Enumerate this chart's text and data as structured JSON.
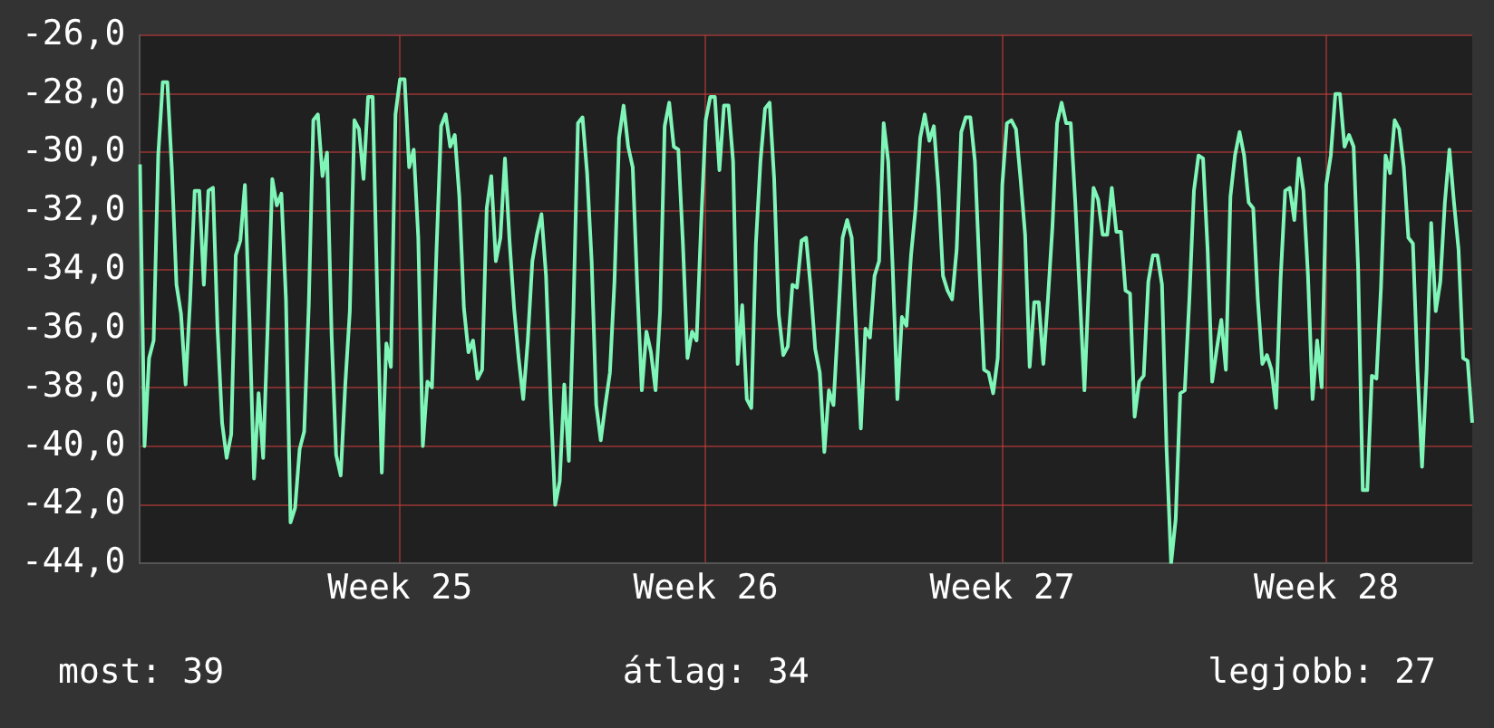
{
  "chart_data": {
    "type": "line",
    "categories": [
      null,
      null,
      null,
      null,
      null,
      null,
      null,
      null,
      null,
      null,
      null,
      null,
      null,
      null,
      null,
      null,
      null,
      null,
      null,
      null,
      null,
      null,
      null,
      null,
      null,
      null,
      null,
      null,
      null,
      null,
      null,
      null,
      null,
      null,
      null,
      null,
      null,
      null,
      null,
      null,
      null,
      null,
      null,
      null,
      null,
      null,
      null,
      null,
      null,
      null,
      null,
      null,
      null,
      null,
      null,
      null,
      null,
      "Week 25",
      null,
      null,
      null,
      null,
      null,
      null,
      null,
      null,
      null,
      null,
      null,
      null,
      null,
      null,
      null,
      null,
      null,
      null,
      null,
      null,
      null,
      null,
      null,
      null,
      null,
      null,
      null,
      null,
      null,
      null,
      null,
      null,
      null,
      null,
      null,
      null,
      null,
      null,
      null,
      null,
      null,
      null,
      null,
      null,
      null,
      null,
      null,
      null,
      null,
      null,
      null,
      null,
      null,
      null,
      null,
      null,
      null,
      null,
      null,
      null,
      null,
      null,
      null,
      null,
      null,
      null,
      "Week 26",
      null,
      null,
      null,
      null,
      null,
      null,
      null,
      null,
      null,
      null,
      null,
      null,
      null,
      null,
      null,
      null,
      null,
      null,
      null,
      null,
      null,
      null,
      null,
      null,
      null,
      null,
      null,
      null,
      null,
      null,
      null,
      null,
      null,
      null,
      null,
      null,
      null,
      null,
      null,
      null,
      null,
      null,
      null,
      null,
      null,
      null,
      null,
      null,
      null,
      null,
      null,
      null,
      null,
      null,
      null,
      null,
      null,
      null,
      null,
      null,
      null,
      null,
      null,
      null,
      "Week 27",
      null,
      null,
      null,
      null,
      null,
      null,
      null,
      null,
      null,
      null,
      null,
      null,
      null,
      null,
      null,
      null,
      null,
      null,
      null,
      null,
      null,
      null,
      null,
      null,
      null,
      null,
      null,
      null,
      null,
      null,
      null,
      null,
      null,
      null,
      null,
      null,
      null,
      null,
      null,
      null,
      null,
      null,
      null,
      null,
      null,
      null,
      null,
      null,
      null,
      null,
      null,
      null,
      null,
      null,
      null,
      null,
      null,
      null,
      null,
      null,
      null,
      null,
      null,
      null,
      null,
      null,
      null,
      null,
      null,
      null,
      "Week 28",
      null,
      null,
      null,
      null,
      null,
      null,
      null,
      null,
      null,
      null,
      null,
      null,
      null,
      null,
      null,
      null,
      null,
      null,
      null,
      null,
      null,
      null,
      null,
      null,
      null,
      null,
      null,
      null,
      null,
      null,
      null,
      null
    ],
    "series": [
      {
        "color": "#7ff5b8",
        "values": [
          -30.4,
          -40.0,
          -37.0,
          -36.4,
          -30.1,
          -27.6,
          -27.6,
          -30.6,
          -34.5,
          -35.5,
          -37.9,
          -35.0,
          -31.3,
          -31.3,
          -34.5,
          -31.3,
          -31.2,
          -36.0,
          -39.2,
          -40.4,
          -39.6,
          -33.5,
          -33.0,
          -31.1,
          -35.7,
          -41.1,
          -38.2,
          -40.4,
          -35.9,
          -30.9,
          -31.8,
          -31.4,
          -35.0,
          -42.6,
          -42.1,
          -40.1,
          -39.5,
          -35.2,
          -28.9,
          -28.7,
          -30.8,
          -30.0,
          -36.2,
          -40.3,
          -41.0,
          -37.9,
          -35.4,
          -28.9,
          -29.2,
          -30.9,
          -28.1,
          -28.1,
          -34.8,
          -40.9,
          -36.5,
          -37.3,
          -28.7,
          -27.5,
          -27.5,
          -30.5,
          -29.9,
          -32.9,
          -40.0,
          -37.8,
          -38.0,
          -33.3,
          -29.1,
          -28.7,
          -29.8,
          -29.4,
          -31.5,
          -35.3,
          -36.8,
          -36.4,
          -37.7,
          -37.4,
          -31.9,
          -30.8,
          -33.7,
          -32.9,
          -30.2,
          -33.0,
          -35.3,
          -37.0,
          -38.4,
          -36.4,
          -33.7,
          -32.8,
          -32.1,
          -34.2,
          -38.4,
          -42.0,
          -41.2,
          -37.9,
          -40.5,
          -35.4,
          -29.0,
          -28.8,
          -30.7,
          -33.7,
          -38.6,
          -39.8,
          -38.6,
          -37.5,
          -34.4,
          -29.5,
          -28.4,
          -29.8,
          -30.5,
          -34.6,
          -38.1,
          -36.1,
          -36.8,
          -38.1,
          -35.4,
          -29.1,
          -28.3,
          -29.8,
          -29.9,
          -33.1,
          -37.0,
          -36.1,
          -36.4,
          -32.4,
          -28.9,
          -28.1,
          -28.1,
          -30.6,
          -28.4,
          -28.4,
          -30.3,
          -37.2,
          -35.2,
          -38.4,
          -38.7,
          -33.1,
          -30.3,
          -28.5,
          -28.3,
          -30.9,
          -35.5,
          -36.9,
          -36.6,
          -34.5,
          -34.6,
          -33.0,
          -32.9,
          -34.6,
          -36.7,
          -37.5,
          -40.2,
          -38.1,
          -38.6,
          -35.8,
          -32.9,
          -32.3,
          -32.9,
          -36.2,
          -39.4,
          -36.0,
          -36.3,
          -34.2,
          -33.7,
          -29.0,
          -30.3,
          -34.0,
          -38.4,
          -35.6,
          -35.9,
          -33.5,
          -31.9,
          -29.5,
          -28.7,
          -29.6,
          -29.1,
          -31.2,
          -34.2,
          -34.7,
          -35.0,
          -33.3,
          -29.3,
          -28.8,
          -28.8,
          -30.3,
          -34.0,
          -37.4,
          -37.5,
          -38.2,
          -37.0,
          -31.1,
          -29.0,
          -28.9,
          -29.2,
          -30.9,
          -32.8,
          -37.3,
          -35.1,
          -35.1,
          -37.2,
          -35.0,
          -32.5,
          -29.0,
          -28.3,
          -29.0,
          -29.0,
          -31.7,
          -34.9,
          -38.1,
          -34.4,
          -31.2,
          -31.6,
          -32.8,
          -32.8,
          -31.2,
          -32.7,
          -32.7,
          -34.7,
          -34.8,
          -39.0,
          -37.8,
          -37.6,
          -34.4,
          -33.5,
          -33.5,
          -34.5,
          -40.1,
          -44.0,
          -42.5,
          -38.2,
          -38.1,
          -35.0,
          -31.3,
          -30.1,
          -30.2,
          -33.3,
          -37.8,
          -36.7,
          -35.7,
          -37.4,
          -31.5,
          -30.1,
          -29.3,
          -30.1,
          -31.7,
          -31.9,
          -35.0,
          -37.2,
          -36.9,
          -37.4,
          -38.7,
          -34.3,
          -31.3,
          -31.2,
          -32.3,
          -30.2,
          -31.3,
          -34.2,
          -38.4,
          -36.4,
          -38.0,
          -31.1,
          -30.1,
          -28.0,
          -28.0,
          -29.8,
          -29.4,
          -29.8,
          -34.0,
          -41.5,
          -41.5,
          -37.6,
          -37.7,
          -34.6,
          -30.1,
          -30.7,
          -28.9,
          -29.2,
          -30.5,
          -32.9,
          -33.1,
          -37.4,
          -40.7,
          -37.4,
          -32.4,
          -35.4,
          -34.4,
          -31.7,
          -29.9,
          -31.7,
          -33.3,
          -37.0,
          -37.1,
          -39.2
        ]
      }
    ],
    "ylim": [
      -44,
      -26
    ],
    "yticks": [
      {
        "value": -44,
        "label": "-44,0"
      },
      {
        "value": -42,
        "label": "-42,0"
      },
      {
        "value": -40,
        "label": "-40,0"
      },
      {
        "value": -38,
        "label": "-38,0"
      },
      {
        "value": -36,
        "label": "-36,0"
      },
      {
        "value": -34,
        "label": "-34,0"
      },
      {
        "value": -32,
        "label": "-32,0"
      },
      {
        "value": -30,
        "label": "-30,0"
      },
      {
        "value": -28,
        "label": "-28,0"
      },
      {
        "value": -26,
        "label": "-26,0"
      }
    ],
    "grid": true,
    "legend": false,
    "marker": "none",
    "line_style": "solid",
    "annotations": [
      "most: 39",
      "átlag: 34",
      "legjobb: 27"
    ]
  }
}
